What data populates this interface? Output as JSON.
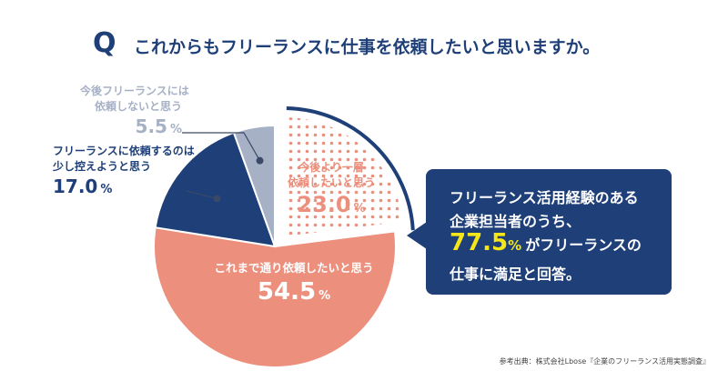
{
  "header": {
    "q_mark": "Q",
    "question": "これからもフリーランスに仕事を依頼したいと思いますか。"
  },
  "chart_data": {
    "type": "pie",
    "title": "これからもフリーランスに仕事を依頼したいと思いますか。",
    "unit": "%",
    "slices": [
      {
        "name": "今後より一層依頼したいと思う",
        "lines": [
          "今後より一層",
          "依頼したいと思う"
        ],
        "value": 23.0,
        "value_label": "23.0",
        "color": "#f0a08d",
        "pattern": "dots"
      },
      {
        "name": "これまで通り依頼したいと思う",
        "lines": [
          "これまで通り依頼したいと思う"
        ],
        "value": 54.5,
        "value_label": "54.5",
        "color": "#ec907d"
      },
      {
        "name": "フリーランスに依頼するのは少し控えようと思う",
        "lines": [
          "フリーランスに依頼するのは",
          "少し控えようと思う"
        ],
        "value": 17.0,
        "value_label": "17.0",
        "color": "#1e3f78"
      },
      {
        "name": "今後フリーランスには依頼しないと思う",
        "lines": [
          "今後フリーランスには",
          "依頼しないと思う"
        ],
        "value": 5.5,
        "value_label": "5.5",
        "color": "#a7b1c6"
      }
    ]
  },
  "callout": {
    "line1": "フリーランス活用経験のある",
    "line2": "企業担当者のうち、",
    "highlight_value": "77.5",
    "unit": "%",
    "line3_rest": "がフリーランスの",
    "line4": "仕事に満足と回答。",
    "background_color": "#1e3f78",
    "text_color": "#ffffff",
    "highlight_color": "#f5e61a"
  },
  "source": "参考出典：株式会社Lbose『企業のフリーランス活用実態調査』"
}
